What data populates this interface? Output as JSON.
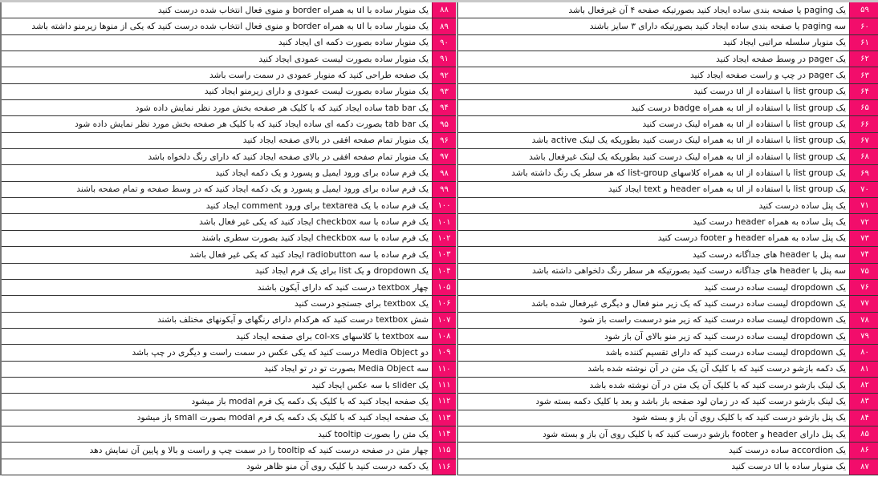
{
  "colors": {
    "number_cell": "#f20d6b",
    "border": "#333333"
  },
  "right_table": [
    {
      "num": "۵۹",
      "text": "یک paging یا صفحه بندی ساده ایجاد کنید بصورتیکه صفحه ۴ آن غیرفعال باشد"
    },
    {
      "num": "۶۰",
      "text": "سه paging یا صفحه بندی ساده ایجاد کنید بصورتیکه دارای ۳ سایز باشند"
    },
    {
      "num": "۶۱",
      "text": "یک منوبار سلسله مراتبی ایجاد کنید"
    },
    {
      "num": "۶۲",
      "text": "یک pager در وسط صفحه  ایجاد کنید"
    },
    {
      "num": "۶۳",
      "text": "یک pager در چپ و راست صفحه  ایجاد کنید"
    },
    {
      "num": "۶۴",
      "text": "یک list group با استفاده از ul درست کنید"
    },
    {
      "num": "۶۵",
      "text": "یک list group با استفاده از ul به همراه badge درست کنید"
    },
    {
      "num": "۶۶",
      "text": "یک list group با استفاده از ul به همراه لینک درست کنید"
    },
    {
      "num": "۶۷",
      "text": "یک list group با استفاده از ul به همراه لینک درست کنید بطوریکه یک لینک active باشد"
    },
    {
      "num": "۶۸",
      "text": "یک list group با استفاده از ul به همراه لینک درست کنید بطوریکه یک لینک غیرفعال باشد"
    },
    {
      "num": "۶۹",
      "text": "یک list group با استفاده از ul به همراه کلاسهای list-group که هر سطر یک رنگ داشته باشد"
    },
    {
      "num": "۷۰",
      "text": "یک list group با استفاده از ul به همراه header و text ایجاد کنید"
    },
    {
      "num": "۷۱",
      "text": "یک پنل ساده درست کنید"
    },
    {
      "num": "۷۲",
      "text": "یک پنل ساده به همراه header درست کنید"
    },
    {
      "num": "۷۳",
      "text": "یک پنل ساده به همراه header و footer درست کنید"
    },
    {
      "num": "۷۴",
      "text": "سه پنل با header های جداگانه درست کنید"
    },
    {
      "num": "۷۵",
      "text": "سه پنل با header های جداگانه درست کنید بصورتیکه هر سطر رنگ دلخواهی داشته باشد"
    },
    {
      "num": "۷۶",
      "text": "یک dropdown لیست ساده درست کنید"
    },
    {
      "num": "۷۷",
      "text": "یک dropdown لیست ساده درست کنید که یک زیر منو فعال و دیگری غیرفعال شده باشد"
    },
    {
      "num": "۷۸",
      "text": "یک dropdown لیست ساده درست کنید که زیر منو درسمت راست باز شود"
    },
    {
      "num": "۷۹",
      "text": "یک dropdown لیست ساده درست کنید که زیر منو بالای آن باز شود"
    },
    {
      "num": "۸۰",
      "text": "یک dropdown لیست ساده درست کنید که دارای تقسیم کننده باشد"
    },
    {
      "num": "۸۱",
      "text": "یک دکمه بازشو درست کنید که با کلیک آن یک متن در آن نوشته شده باشد"
    },
    {
      "num": "۸۲",
      "text": "یک لینک بازشو درست کنید که با کلیک آن یک متن در آن نوشته شده باشد"
    },
    {
      "num": "۸۳",
      "text": "یک لینک بازشو درست کنید که در زمان لود صفحه باز باشد و بعد با کلیک دکمه بسته شود"
    },
    {
      "num": "۸۴",
      "text": "یک پنل بازشو درست کنید که با کلیک روی آن باز و بسته شود"
    },
    {
      "num": "۸۵",
      "text": "یک پنل دارای header و footer بازشو درست کنید که با کلیک روی آن باز و بسته شود"
    },
    {
      "num": "۸۶",
      "text": "یک accordion ساده درست کنید"
    },
    {
      "num": "۸۷",
      "text": "یک منوبار ساده با ul درست کنید"
    }
  ],
  "left_table": [
    {
      "num": "۸۸",
      "text": "یک منوبار ساده با ul به همراه border و منوی فعال انتخاب شده درست کنید"
    },
    {
      "num": "۸۹",
      "text": "یک منوبار ساده با ul به همراه border و منوی فعال انتخاب شده درست کنید که یکی از منوها زیرمنو داشته باشد"
    },
    {
      "num": "۹۰",
      "text": "یک منوبار ساده بصورت دکمه ای ایجاد کنید"
    },
    {
      "num": "۹۱",
      "text": "یک منوبار ساده بصورت لیست عمودی ایجاد کنید"
    },
    {
      "num": "۹۲",
      "text": "یک صفحه طراحی کنید که منوبار عمودی در سمت راست باشد"
    },
    {
      "num": "۹۳",
      "text": "یک منوبار ساده بصورت لیست عمودی و دارای زیرمنو ایجاد کنید"
    },
    {
      "num": "۹۴",
      "text": "یک tab bar ساده ایجاد کنید که با کلیک هر صفحه بخش مورد نظر نمایش داده شود"
    },
    {
      "num": "۹۵",
      "text": "یک tab bar بصورت دکمه ای ساده ایجاد کنید که با کلیک هر صفحه بخش مورد نظر نمایش داده شود"
    },
    {
      "num": "۹۶",
      "text": "یک منوبار تمام صفحه افقی در بالای صفحه ایجاد کنید"
    },
    {
      "num": "۹۷",
      "text": "یک منوبار تمام صفحه افقی در بالای صفحه ایجاد کنید که دارای رنگ دلخواه باشد"
    },
    {
      "num": "۹۸",
      "text": "یک فرم ساده برای ورود ایمیل و پسورد و یک دکمه ایجاد کنید"
    },
    {
      "num": "۹۹",
      "text": "یک فرم ساده برای ورود ایمیل و پسورد و یک دکمه ایجاد کنید که در وسط صفحه و تمام صفحه باشند"
    },
    {
      "num": "۱۰۰",
      "text": "یک فرم ساده با یک textarea برای ورود comment ایجاد کنید"
    },
    {
      "num": "۱۰۱",
      "text": "یک فرم ساده با سه checkbox ایجاد کنید که یکی غیر فعال باشد"
    },
    {
      "num": "۱۰۲",
      "text": "یک فرم ساده با سه checkbox ایجاد کنید بصورت سطری باشند"
    },
    {
      "num": "۱۰۳",
      "text": "یک فرم ساده با سه radiobutton ایجاد کنید که یکی غیر فعال باشد"
    },
    {
      "num": "۱۰۴",
      "text": "یک dropdown و یک list برای یک فرم ایجاد کنید"
    },
    {
      "num": "۱۰۵",
      "text": "چهار textbox درست کنید که دارای آیکون باشند"
    },
    {
      "num": "۱۰۶",
      "text": "یک textbox برای جستجو درست کنید"
    },
    {
      "num": "۱۰۷",
      "text": "شش textbox درست کنید که هرکدام دارای رنگهای و آیکونهای مختلف باشند"
    },
    {
      "num": "۱۰۸",
      "text": "سه textbox با کلاسهای col-xs برای صفحه ایجاد کنید"
    },
    {
      "num": "۱۰۹",
      "text": "دو Media Object درست کنید که یکی عکس در سمت راست و دیگری در چپ باشد"
    },
    {
      "num": "۱۱۰",
      "text": "سه Media Object بصورت تو در تو ایجاد کنید"
    },
    {
      "num": "۱۱۱",
      "text": "یک slider با سه عکس ایجاد کنید"
    },
    {
      "num": "۱۱۲",
      "text": "یک صفحه ایجاد کنید که با کلیک یک دکمه یک فرم modal باز میشود"
    },
    {
      "num": "۱۱۳",
      "text": "یک صفحه ایجاد کنید که با کلیک یک دکمه یک فرم modal  بصورت small باز میشود"
    },
    {
      "num": "۱۱۴",
      "text": "یک متن را بصورت tooltip کنید"
    },
    {
      "num": "۱۱۵",
      "text": "چهار متن در صفحه درست کنید که tooltip را در سمت چپ و راست و بالا و پایین آن نمایش دهد"
    },
    {
      "num": "۱۱۶",
      "text": "یک دکمه درست کنید با کلیک روی آن منو ظاهر شود"
    }
  ]
}
